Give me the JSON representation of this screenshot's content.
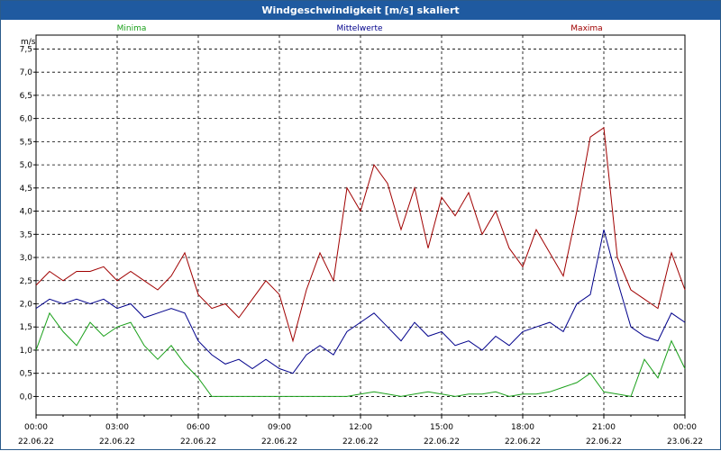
{
  "window": {
    "title": "Windgeschwindigkeit [m/s] skaliert"
  },
  "colors": {
    "titlebar": "#1f5aa0",
    "min": "#1aa01a",
    "mean": "#00008b",
    "max": "#a00000",
    "grid": "#000000"
  },
  "chart_data": {
    "type": "line",
    "title": "Windgeschwindigkeit [m/s] skaliert",
    "ylabel": "m/s",
    "xlabel": "",
    "ylim": [
      -0.4,
      7.8
    ],
    "yticks": [
      "0,0",
      "0,5",
      "1,0",
      "1,5",
      "2,0",
      "2,5",
      "3,0",
      "3,5",
      "4,0",
      "4,5",
      "5,0",
      "5,5",
      "6,0",
      "6,5",
      "7,0",
      "7,5"
    ],
    "xticks": [
      {
        "time": "00:00",
        "date": "22.06.22"
      },
      {
        "time": "03:00",
        "date": "22.06.22"
      },
      {
        "time": "06:00",
        "date": "22.06.22"
      },
      {
        "time": "09:00",
        "date": "22.06.22"
      },
      {
        "time": "12:00",
        "date": "22.06.22"
      },
      {
        "time": "15:00",
        "date": "22.06.22"
      },
      {
        "time": "18:00",
        "date": "22.06.22"
      },
      {
        "time": "21:00",
        "date": "22.06.22"
      },
      {
        "time": "00:00",
        "date": "23.06.22"
      }
    ],
    "grid": true,
    "legend_position": "top",
    "series": [
      {
        "name": "Minima",
        "x_hours": [
          0,
          0.5,
          1,
          1.5,
          2,
          2.5,
          3,
          3.5,
          4,
          4.5,
          5,
          5.5,
          6,
          6.5,
          7,
          7.5,
          8,
          8.5,
          9,
          9.5,
          10,
          10.5,
          11,
          11.5,
          12,
          12.5,
          13,
          13.5,
          14,
          14.5,
          15,
          15.5,
          16,
          16.5,
          17,
          17.5,
          18,
          18.5,
          19,
          19.5,
          20,
          20.5,
          21,
          21.5,
          22,
          22.5,
          23,
          23.5,
          24
        ],
        "values": [
          1.0,
          1.8,
          1.4,
          1.1,
          1.6,
          1.3,
          1.5,
          1.6,
          1.1,
          0.8,
          1.1,
          0.7,
          0.4,
          0.0,
          0.0,
          0.0,
          0.0,
          0.0,
          0.0,
          0.0,
          0.0,
          0.0,
          0.0,
          0.0,
          0.05,
          0.1,
          0.05,
          0.0,
          0.05,
          0.1,
          0.05,
          0.0,
          0.05,
          0.05,
          0.1,
          0.0,
          0.05,
          0.05,
          0.1,
          0.2,
          0.3,
          0.5,
          0.1,
          0.05,
          0.0,
          0.8,
          0.4,
          1.2,
          0.6
        ]
      },
      {
        "name": "Mittelwerte",
        "x_hours": [
          0,
          0.5,
          1,
          1.5,
          2,
          2.5,
          3,
          3.5,
          4,
          4.5,
          5,
          5.5,
          6,
          6.5,
          7,
          7.5,
          8,
          8.5,
          9,
          9.5,
          10,
          10.5,
          11,
          11.5,
          12,
          12.5,
          13,
          13.5,
          14,
          14.5,
          15,
          15.5,
          16,
          16.5,
          17,
          17.5,
          18,
          18.5,
          19,
          19.5,
          20,
          20.5,
          21,
          21.5,
          22,
          22.5,
          23,
          23.5,
          24
        ],
        "values": [
          1.9,
          2.1,
          2.0,
          2.1,
          2.0,
          2.1,
          1.9,
          2.0,
          1.7,
          1.8,
          1.9,
          1.8,
          1.2,
          0.9,
          0.7,
          0.8,
          0.6,
          0.8,
          0.6,
          0.5,
          0.9,
          1.1,
          0.9,
          1.4,
          1.6,
          1.8,
          1.5,
          1.2,
          1.6,
          1.3,
          1.4,
          1.1,
          1.2,
          1.0,
          1.3,
          1.1,
          1.4,
          1.5,
          1.6,
          1.4,
          2.0,
          2.2,
          3.6,
          2.5,
          1.5,
          1.3,
          1.2,
          1.8,
          1.6
        ]
      },
      {
        "name": "Maxima",
        "x_hours": [
          0,
          0.5,
          1,
          1.5,
          2,
          2.5,
          3,
          3.5,
          4,
          4.5,
          5,
          5.5,
          6,
          6.5,
          7,
          7.5,
          8,
          8.5,
          9,
          9.5,
          10,
          10.5,
          11,
          11.5,
          12,
          12.5,
          13,
          13.5,
          14,
          14.5,
          15,
          15.5,
          16,
          16.5,
          17,
          17.5,
          18,
          18.5,
          19,
          19.5,
          20,
          20.5,
          21,
          21.5,
          22,
          22.5,
          23,
          23.5,
          24
        ],
        "values": [
          2.4,
          2.7,
          2.5,
          2.7,
          2.7,
          2.8,
          2.5,
          2.7,
          2.5,
          2.3,
          2.6,
          3.1,
          2.2,
          1.9,
          2.0,
          1.7,
          2.1,
          2.5,
          2.2,
          1.2,
          2.3,
          3.1,
          2.5,
          4.5,
          4.0,
          5.0,
          4.6,
          3.6,
          4.5,
          3.2,
          4.3,
          3.9,
          4.4,
          3.5,
          4.0,
          3.2,
          2.8,
          3.6,
          3.1,
          2.6,
          4.0,
          5.6,
          5.8,
          3.0,
          2.3,
          2.1,
          1.9,
          3.1,
          2.3
        ]
      }
    ]
  }
}
